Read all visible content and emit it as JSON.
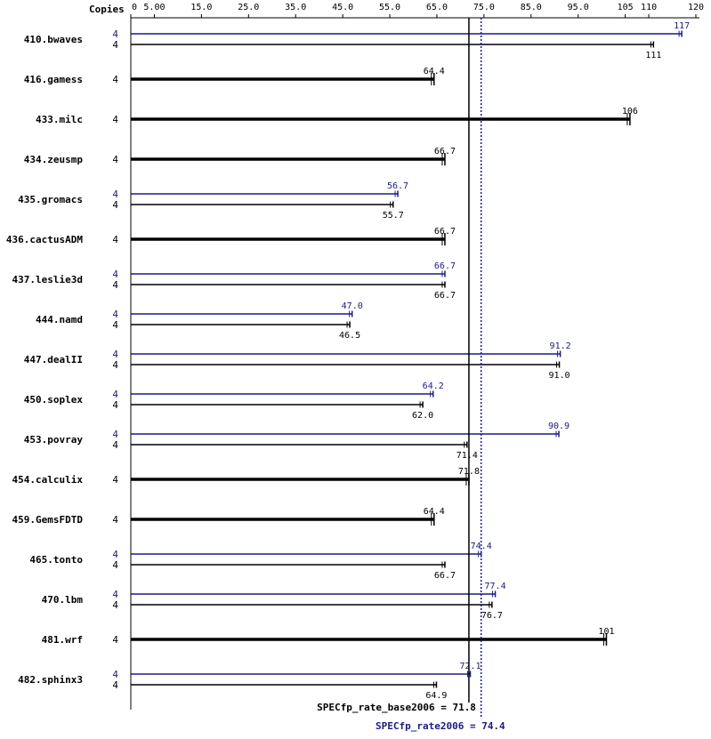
{
  "chart_data": {
    "type": "bar",
    "orientation": "horizontal",
    "header": "Copies",
    "x_ticks": [
      "0",
      "5.00",
      "15.0",
      "25.0",
      "35.0",
      "45.0",
      "55.0",
      "65.0",
      "75.0",
      "85.0",
      "95.0",
      "105",
      "110",
      "120"
    ],
    "x_tick_values": [
      0,
      5,
      15,
      25,
      35,
      45,
      55,
      65,
      75,
      85,
      95,
      105,
      110,
      120
    ],
    "xlim": [
      0,
      120
    ],
    "grid": false,
    "colors": {
      "base": "#000000",
      "peak": "#1a1a8c",
      "axis": "#000000"
    },
    "series_keys": [
      "peak",
      "base"
    ],
    "benchmarks": [
      {
        "name": "410.bwaves",
        "peak": {
          "copies": "4",
          "value": 117,
          "label": "117"
        },
        "base": {
          "copies": "4",
          "value": 111,
          "label": "111"
        }
      },
      {
        "name": "416.gamess",
        "base": {
          "copies": "4",
          "value": 64.4,
          "label": "64.4"
        }
      },
      {
        "name": "433.milc",
        "base": {
          "copies": "4",
          "value": 106,
          "label": "106"
        }
      },
      {
        "name": "434.zeusmp",
        "base": {
          "copies": "4",
          "value": 66.7,
          "label": "66.7"
        }
      },
      {
        "name": "435.gromacs",
        "peak": {
          "copies": "4",
          "value": 56.7,
          "label": "56.7"
        },
        "base": {
          "copies": "4",
          "value": 55.7,
          "label": "55.7"
        }
      },
      {
        "name": "436.cactusADM",
        "base": {
          "copies": "4",
          "value": 66.7,
          "label": "66.7"
        }
      },
      {
        "name": "437.leslie3d",
        "peak": {
          "copies": "4",
          "value": 66.7,
          "label": "66.7"
        },
        "base": {
          "copies": "4",
          "value": 66.7,
          "label": "66.7"
        }
      },
      {
        "name": "444.namd",
        "peak": {
          "copies": "4",
          "value": 47.0,
          "label": "47.0"
        },
        "base": {
          "copies": "4",
          "value": 46.5,
          "label": "46.5"
        }
      },
      {
        "name": "447.dealII",
        "peak": {
          "copies": "4",
          "value": 91.2,
          "label": "91.2"
        },
        "base": {
          "copies": "4",
          "value": 91.0,
          "label": "91.0"
        }
      },
      {
        "name": "450.soplex",
        "peak": {
          "copies": "4",
          "value": 64.2,
          "label": "64.2"
        },
        "base": {
          "copies": "4",
          "value": 62.0,
          "label": "62.0"
        }
      },
      {
        "name": "453.povray",
        "peak": {
          "copies": "4",
          "value": 90.9,
          "label": "90.9"
        },
        "base": {
          "copies": "4",
          "value": 71.4,
          "label": "71.4"
        }
      },
      {
        "name": "454.calculix",
        "base": {
          "copies": "4",
          "value": 71.8,
          "label": "71.8"
        }
      },
      {
        "name": "459.GemsFDTD",
        "base": {
          "copies": "4",
          "value": 64.4,
          "label": "64.4"
        }
      },
      {
        "name": "465.tonto",
        "peak": {
          "copies": "4",
          "value": 74.4,
          "label": "74.4"
        },
        "base": {
          "copies": "4",
          "value": 66.7,
          "label": "66.7"
        }
      },
      {
        "name": "470.lbm",
        "peak": {
          "copies": "4",
          "value": 77.4,
          "label": "77.4"
        },
        "base": {
          "copies": "4",
          "value": 76.7,
          "label": "76.7"
        }
      },
      {
        "name": "481.wrf",
        "base": {
          "copies": "4",
          "value": 101,
          "label": "101"
        }
      },
      {
        "name": "482.sphinx3",
        "peak": {
          "copies": "4",
          "value": 72.1,
          "label": "72.1"
        },
        "base": {
          "copies": "4",
          "value": 64.9,
          "label": "64.9"
        }
      }
    ],
    "reference_lines": [
      {
        "key": "base",
        "value": 71.8,
        "label": "SPECfp_rate_base2006 = 71.8"
      },
      {
        "key": "peak",
        "value": 74.4,
        "label": "SPECfp_rate2006 = 74.4"
      }
    ]
  }
}
